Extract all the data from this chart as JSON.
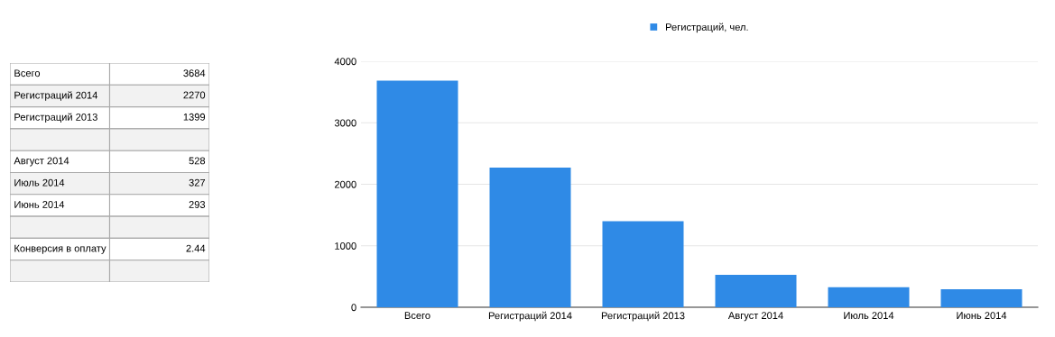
{
  "chart_data": [
    {
      "type": "other",
      "categories": [
        "Всего",
        "Регистраций 2014",
        "Регистраций 2013",
        null,
        "Август 2014",
        "Июль 2014",
        "Июнь 2014",
        null,
        "Конверсия в оплату",
        null
      ],
      "values": [
        3684,
        2270,
        1399,
        null,
        528,
        327,
        293,
        null,
        2.44,
        null
      ],
      "data_labels": true
    },
    {
      "type": "bar",
      "categories": [
        "Всего",
        "Регистраций 2014",
        "Регистраций 2013",
        "Август 2014",
        "Июль 2014",
        "Июнь 2014"
      ],
      "series": [
        {
          "name": "Регистраций, чел.",
          "color": "#2f8ae6",
          "values": [
            3684,
            2270,
            1399,
            528,
            327,
            293
          ]
        }
      ],
      "ylim": [
        0,
        4000
      ],
      "yticks": [
        0,
        1000,
        2000,
        3000,
        4000
      ],
      "grid": "y",
      "legend": "top"
    }
  ]
}
